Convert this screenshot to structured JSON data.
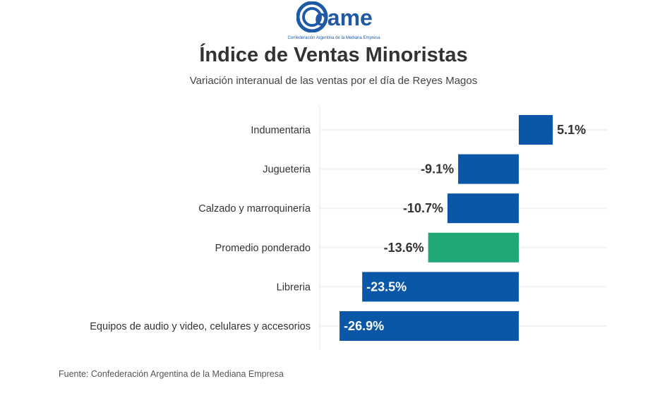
{
  "logo": {
    "text": "came",
    "caption": "Confederación Argentina de la Mediana Empresa",
    "color": "#1f5aa6"
  },
  "title": "Índice de Ventas Minoristas",
  "subtitle": "Variación interanual de las ventas por el día de Reyes Magos",
  "source": "Fuente: Confederación Argentina de la Mediana Empresa",
  "chart_data": {
    "type": "bar",
    "orientation": "horizontal",
    "title": "Índice de Ventas Minoristas",
    "subtitle": "Variación interanual de las ventas por el día de Reyes Magos",
    "xlabel": "",
    "ylabel": "",
    "unit": "%",
    "xlim": [
      -26.9,
      5.1
    ],
    "grid": true,
    "categories": [
      "Indumentaria",
      "Jugueteria",
      "Calzado y marroquinería",
      "Promedio ponderado",
      "Libreria",
      "Equipos de audio y video, celulares y accesorios"
    ],
    "values": [
      5.1,
      -9.1,
      -10.7,
      -13.6,
      -23.5,
      -26.9
    ],
    "labels": [
      "5.1%",
      "-9.1%",
      "-10.7%",
      "-13.6%",
      "-23.5%",
      "-26.9%"
    ],
    "colors": [
      "#0a57a8",
      "#0a57a8",
      "#0a57a8",
      "#21a877",
      "#0a57a8",
      "#0a57a8"
    ],
    "label_inside": [
      false,
      false,
      false,
      false,
      true,
      true
    ]
  }
}
